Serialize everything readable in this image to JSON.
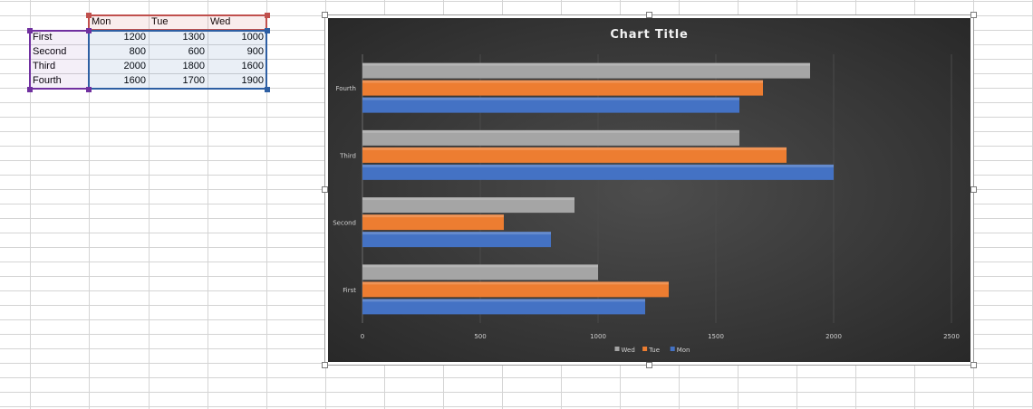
{
  "spreadsheet": {
    "headers": [
      "Mon",
      "Tue",
      "Wed"
    ],
    "rows": [
      {
        "label": "First",
        "values": [
          "1200",
          "1300",
          "1000"
        ]
      },
      {
        "label": "Second",
        "values": [
          "800",
          "600",
          "900"
        ]
      },
      {
        "label": "Third",
        "values": [
          "2000",
          "1800",
          "1600"
        ]
      },
      {
        "label": "Fourth",
        "values": [
          "1600",
          "1700",
          "1900"
        ]
      }
    ]
  },
  "chart_data": {
    "type": "bar",
    "orientation": "horizontal",
    "title": "Chart Title",
    "categories": [
      "First",
      "Second",
      "Third",
      "Fourth"
    ],
    "series": [
      {
        "name": "Mon",
        "values": [
          1200,
          800,
          2000,
          1600
        ],
        "color": "#4472c4"
      },
      {
        "name": "Tue",
        "values": [
          1300,
          600,
          1800,
          1700
        ],
        "color": "#ed7d31"
      },
      {
        "name": "Wed",
        "values": [
          1000,
          900,
          1600,
          1900
        ],
        "color": "#a5a5a5"
      }
    ],
    "xlim": [
      0,
      2500
    ],
    "xticks": [
      "0",
      "500",
      "1000",
      "1500",
      "2000",
      "2500"
    ],
    "grid": true,
    "legend_position": "bottom",
    "legend_order": [
      "Wed",
      "Tue",
      "Mon"
    ],
    "background": "#262626"
  },
  "colors": {
    "gridline": "#d4d4d4",
    "header_highlight": "#c0504d",
    "label_highlight": "#7030a0",
    "value_highlight": "#2e5fa3"
  }
}
